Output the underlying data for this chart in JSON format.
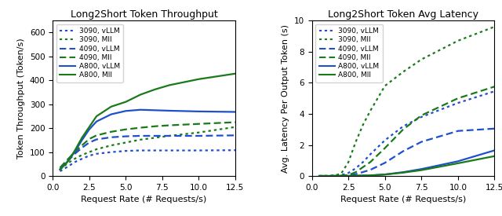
{
  "title_left": "Long2Short Token Throughput",
  "title_right": "Long2Short Token Avg Latency",
  "xlabel": "Request Rate (# Requests/s)",
  "ylabel_left": "Token Throughput (Token/s)",
  "ylabel_right": "Avg. Latency Per Output Token (s)",
  "x_ticks_left": [
    0.0,
    2.5,
    5.0,
    7.5,
    10.0,
    12.5
  ],
  "x_ticks_right": [
    0.0,
    2.5,
    5.0,
    7.5,
    10.0,
    12.5
  ],
  "xlim_left": [
    0.0,
    12.5
  ],
  "xlim_right": [
    0.0,
    12.5
  ],
  "ylim_left": [
    0,
    650
  ],
  "yticks_left": [
    0,
    100,
    200,
    300,
    400,
    500,
    600
  ],
  "ylim_right": [
    0,
    10
  ],
  "yticks_right": [
    0,
    2,
    4,
    6,
    8,
    10
  ],
  "blue": "#1f4fcc",
  "green": "#1a7a1a",
  "series": {
    "throughput": {
      "3090_vllm": {
        "x": [
          0.5,
          1.0,
          1.5,
          2.0,
          2.5,
          3.0,
          4.0,
          5.0,
          6.0,
          7.0,
          8.0,
          10.0,
          12.5
        ],
        "y": [
          20,
          38,
          58,
          72,
          85,
          93,
          100,
          105,
          107,
          107,
          107,
          107,
          108
        ],
        "color": "#1f4fcc",
        "linestyle": "dotted",
        "label": "3090, vLLM"
      },
      "3090_mii": {
        "x": [
          0.5,
          1.0,
          1.5,
          2.0,
          2.5,
          3.0,
          4.0,
          5.0,
          6.0,
          7.0,
          8.0,
          10.0,
          12.5
        ],
        "y": [
          28,
          52,
          72,
          88,
          100,
          112,
          128,
          140,
          152,
          160,
          168,
          182,
          205
        ],
        "color": "#1a7a1a",
        "linestyle": "dotted",
        "label": "3090, MII"
      },
      "4090_vllm": {
        "x": [
          0.5,
          1.0,
          1.5,
          2.0,
          2.5,
          3.0,
          4.0,
          5.0,
          6.0,
          7.0,
          8.0,
          10.0,
          12.5
        ],
        "y": [
          30,
          60,
          92,
          118,
          140,
          153,
          162,
          166,
          168,
          168,
          168,
          168,
          170
        ],
        "color": "#1f4fcc",
        "linestyle": "dashed",
        "label": "4090, vLLM"
      },
      "4090_mii": {
        "x": [
          0.5,
          1.0,
          1.5,
          2.0,
          2.5,
          3.0,
          4.0,
          5.0,
          6.0,
          7.0,
          8.0,
          10.0,
          12.5
        ],
        "y": [
          35,
          68,
          100,
          128,
          155,
          170,
          185,
          195,
          202,
          208,
          212,
          218,
          225
        ],
        "color": "#1a7a1a",
        "linestyle": "dashed",
        "label": "4090, MII"
      },
      "a800_vllm": {
        "x": [
          0.5,
          1.0,
          1.5,
          2.0,
          2.5,
          3.0,
          4.0,
          5.0,
          6.0,
          7.0,
          8.0,
          10.0,
          12.5
        ],
        "y": [
          28,
          60,
          100,
          150,
          195,
          228,
          258,
          272,
          277,
          275,
          273,
          270,
          268
        ],
        "color": "#1f4fcc",
        "linestyle": "solid",
        "label": "A800, vLLM"
      },
      "a800_mii": {
        "x": [
          0.5,
          1.0,
          1.5,
          2.0,
          2.5,
          3.0,
          4.0,
          5.0,
          6.0,
          7.0,
          8.0,
          10.0,
          12.5
        ],
        "y": [
          27,
          58,
          105,
          160,
          205,
          250,
          290,
          310,
          340,
          362,
          380,
          405,
          428
        ],
        "color": "#1a7a1a",
        "linestyle": "solid",
        "label": "A800, MII"
      }
    },
    "latency": {
      "3090_vllm": {
        "x": [
          0.5,
          1.0,
          1.5,
          2.0,
          2.5,
          3.0,
          3.5,
          4.0,
          5.0,
          6.25,
          7.5,
          10.0,
          12.5
        ],
        "y": [
          0.005,
          0.01,
          0.02,
          0.06,
          0.2,
          0.5,
          0.9,
          1.4,
          2.3,
          3.2,
          3.8,
          4.7,
          5.45
        ],
        "color": "#1f4fcc",
        "linestyle": "dotted",
        "label": "3090, vLLM"
      },
      "3090_mii": {
        "x": [
          0.5,
          1.0,
          1.5,
          2.0,
          2.5,
          3.0,
          3.5,
          4.0,
          5.0,
          6.25,
          7.5,
          10.0,
          12.5
        ],
        "y": [
          0.005,
          0.01,
          0.03,
          0.15,
          0.9,
          2.2,
          3.3,
          4.2,
          5.8,
          6.7,
          7.5,
          8.7,
          9.6
        ],
        "color": "#1a7a1a",
        "linestyle": "dotted",
        "label": "3090, MII"
      },
      "4090_vllm": {
        "x": [
          0.5,
          1.0,
          1.5,
          2.0,
          2.5,
          3.0,
          4.0,
          5.0,
          6.25,
          7.5,
          10.0,
          12.5
        ],
        "y": [
          0.005,
          0.005,
          0.01,
          0.02,
          0.05,
          0.12,
          0.4,
          0.85,
          1.6,
          2.2,
          2.9,
          3.05
        ],
        "color": "#1f4fcc",
        "linestyle": "dashed",
        "label": "4090, vLLM"
      },
      "4090_mii": {
        "x": [
          0.5,
          1.0,
          1.5,
          2.0,
          2.5,
          3.0,
          4.0,
          5.0,
          6.25,
          7.5,
          10.0,
          12.5
        ],
        "y": [
          0.005,
          0.005,
          0.01,
          0.02,
          0.07,
          0.25,
          0.9,
          1.8,
          3.0,
          3.9,
          5.0,
          5.75
        ],
        "color": "#1a7a1a",
        "linestyle": "dashed",
        "label": "4090, MII"
      },
      "a800_vllm": {
        "x": [
          0.5,
          1.0,
          1.5,
          2.0,
          2.5,
          3.0,
          4.0,
          5.0,
          6.25,
          7.5,
          10.0,
          12.5
        ],
        "y": [
          0.005,
          0.005,
          0.005,
          0.005,
          0.01,
          0.02,
          0.04,
          0.1,
          0.25,
          0.45,
          0.95,
          1.65
        ],
        "color": "#1f4fcc",
        "linestyle": "solid",
        "label": "A800, vLLM"
      },
      "a800_mii": {
        "x": [
          0.5,
          1.0,
          1.5,
          2.0,
          2.5,
          3.0,
          4.0,
          5.0,
          6.25,
          7.5,
          10.0,
          12.5
        ],
        "y": [
          0.005,
          0.005,
          0.005,
          0.005,
          0.01,
          0.02,
          0.04,
          0.1,
          0.22,
          0.38,
          0.82,
          1.28
        ],
        "color": "#1a7a1a",
        "linestyle": "solid",
        "label": "A800, MII"
      }
    }
  },
  "legend_order": [
    "3090_vllm",
    "3090_mii",
    "4090_vllm",
    "4090_mii",
    "a800_vllm",
    "a800_mii"
  ]
}
